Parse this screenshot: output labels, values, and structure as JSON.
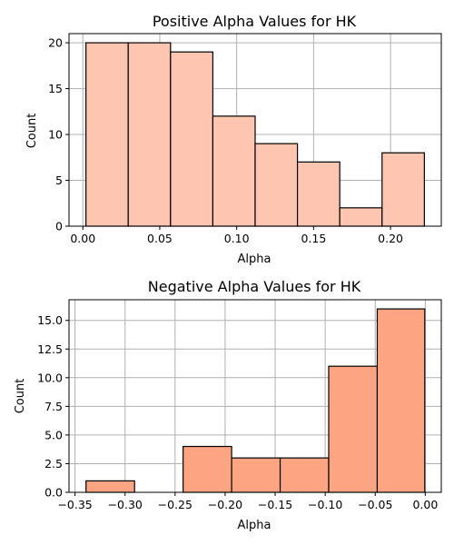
{
  "chart_data": [
    {
      "type": "bar",
      "title": "Positive Alpha Values for HK",
      "xlabel": "Alpha",
      "ylabel": "Count",
      "bin_edges": [
        0.002,
        0.0295,
        0.057,
        0.0845,
        0.112,
        0.1395,
        0.167,
        0.1945,
        0.222
      ],
      "values": [
        20,
        20,
        19,
        12,
        9,
        7,
        2,
        8
      ],
      "xlim": [
        -0.009,
        0.233
      ],
      "ylim": [
        0,
        21
      ],
      "xticks": [
        0.0,
        0.05,
        0.1,
        0.15,
        0.2
      ],
      "xtick_labels": [
        "0.00",
        "0.05",
        "0.10",
        "0.15",
        "0.20"
      ],
      "yticks": [
        0,
        5,
        10,
        15,
        20
      ],
      "ytick_labels": [
        "0",
        "5",
        "10",
        "15",
        "20"
      ],
      "grid": true,
      "bar_color": "#fec5b1"
    },
    {
      "type": "bar",
      "title": "Negative Alpha Values for HK",
      "xlabel": "Alpha",
      "ylabel": "Count",
      "bin_edges": [
        -0.339,
        -0.2905,
        -0.242,
        -0.1935,
        -0.145,
        -0.0965,
        -0.048,
        -0.0005
      ],
      "values": [
        1,
        0,
        4,
        3,
        3,
        11,
        16
      ],
      "xlim": [
        -0.356,
        0.016
      ],
      "ylim": [
        0,
        16.8
      ],
      "xticks": [
        -0.35,
        -0.3,
        -0.25,
        -0.2,
        -0.15,
        -0.1,
        -0.05,
        0.0
      ],
      "xtick_labels": [
        "−0.35",
        "−0.30",
        "−0.25",
        "−0.20",
        "−0.15",
        "−0.10",
        "−0.05",
        "0.00"
      ],
      "yticks": [
        0,
        2.5,
        5,
        7.5,
        10,
        12.5,
        15
      ],
      "ytick_labels": [
        "0.0",
        "2.5",
        "5.0",
        "7.5",
        "10.0",
        "12.5",
        "15.0"
      ],
      "grid": true,
      "bar_color": "#fda482"
    }
  ]
}
